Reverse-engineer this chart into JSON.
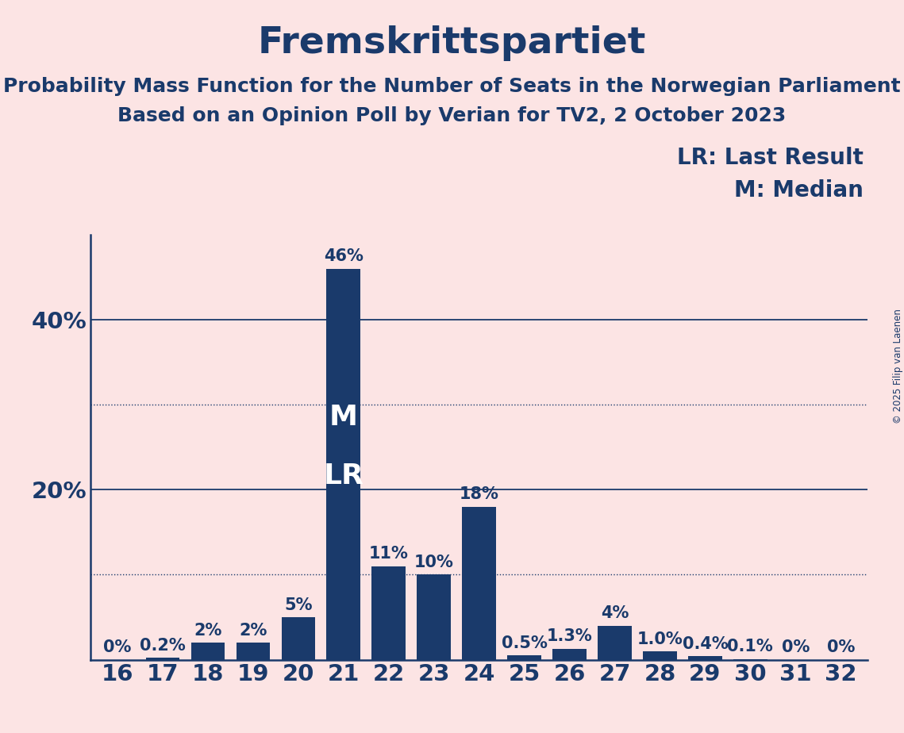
{
  "title": "Fremskrittspartiet",
  "subtitle1": "Probability Mass Function for the Number of Seats in the Norwegian Parliament",
  "subtitle2": "Based on an Opinion Poll by Verian for TV2, 2 October 2023",
  "copyright": "© 2025 Filip van Laenen",
  "categories": [
    16,
    17,
    18,
    19,
    20,
    21,
    22,
    23,
    24,
    25,
    26,
    27,
    28,
    29,
    30,
    31,
    32
  ],
  "values": [
    0.0,
    0.2,
    2.0,
    2.0,
    5.0,
    46.0,
    11.0,
    10.0,
    18.0,
    0.5,
    1.3,
    4.0,
    1.0,
    0.4,
    0.1,
    0.0,
    0.0
  ],
  "labels": [
    "0%",
    "0.2%",
    "2%",
    "2%",
    "5%",
    "46%",
    "11%",
    "10%",
    "18%",
    "0.5%",
    "1.3%",
    "4%",
    "1.0%",
    "0.4%",
    "0.1%",
    "0%",
    "0%"
  ],
  "bar_color": "#1a3a6b",
  "background_color": "#fce4e4",
  "text_color": "#1a3a6b",
  "legend_lr": "LR: Last Result",
  "legend_m": "M: Median",
  "median_seat": 21,
  "last_result_seat": 21,
  "median_label": "M",
  "lr_label": "LR",
  "ylim_max": 50,
  "solid_grid": [
    20,
    40
  ],
  "dotted_grid": [
    10,
    30
  ],
  "title_fontsize": 34,
  "subtitle_fontsize": 18,
  "tick_fontsize": 21,
  "bar_label_fontsize": 15,
  "legend_fontsize": 20,
  "ml_fontsize": 26
}
